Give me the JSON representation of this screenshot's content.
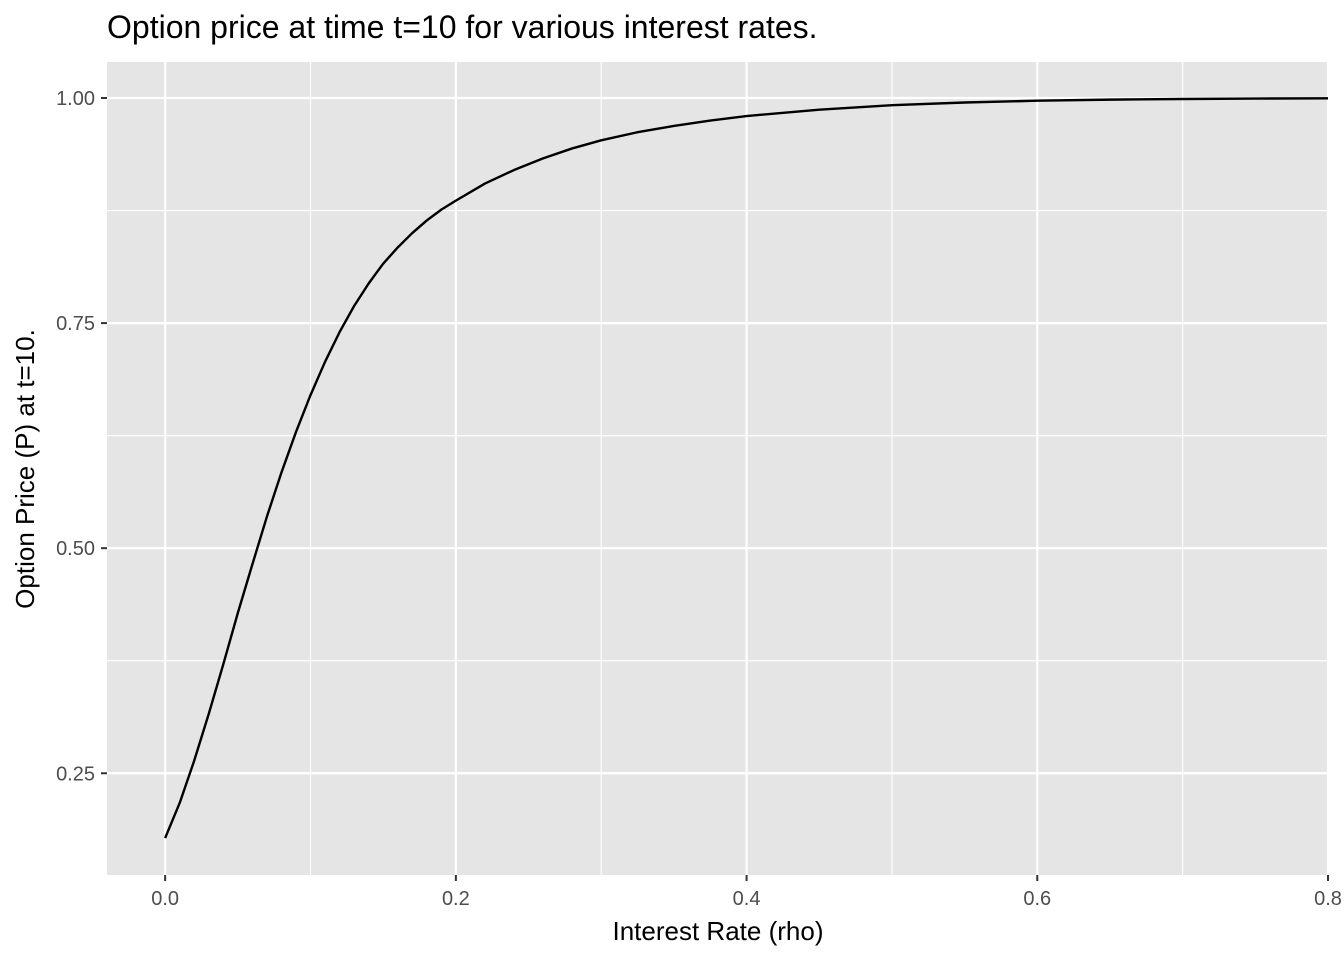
{
  "chart_data": {
    "type": "line",
    "title": "Option price at time t=10 for various interest rates.",
    "xlabel": "Interest Rate (rho)",
    "ylabel": "Option Price (P) at t=10.",
    "xlim": [
      -0.04,
      0.8
    ],
    "ylim": [
      0.137,
      1.04
    ],
    "x_ticks": [
      0.0,
      0.2,
      0.4,
      0.6,
      0.8
    ],
    "x_tick_labels": [
      "0.0",
      "0.2",
      "0.4",
      "0.6",
      "0.8"
    ],
    "y_ticks": [
      0.25,
      0.5,
      0.75,
      1.0
    ],
    "y_tick_labels": [
      "0.25",
      "0.50",
      "0.75",
      "1.00"
    ],
    "x_minor_ticks": [
      0.1,
      0.3,
      0.5,
      0.7
    ],
    "y_minor_ticks": [
      0.375,
      0.625,
      0.875
    ],
    "grid": true,
    "legend": "none",
    "colors": {
      "panel_background": "#e5e5e5",
      "grid": "#ffffff",
      "line": "#000000",
      "tick_label": "#4d4d4d",
      "tick_mark": "#333333"
    },
    "series": [
      {
        "x": [
          0.0,
          0.01,
          0.02,
          0.03,
          0.04,
          0.05,
          0.06,
          0.07,
          0.08,
          0.09,
          0.1,
          0.11,
          0.12,
          0.13,
          0.14,
          0.15,
          0.16,
          0.17,
          0.18,
          0.19,
          0.2,
          0.22,
          0.24,
          0.26,
          0.28,
          0.3,
          0.325,
          0.35,
          0.375,
          0.4,
          0.45,
          0.5,
          0.55,
          0.6,
          0.65,
          0.7,
          0.75,
          0.8
        ],
        "y": [
          0.178,
          0.217,
          0.264,
          0.316,
          0.371,
          0.428,
          0.482,
          0.535,
          0.584,
          0.629,
          0.67,
          0.707,
          0.74,
          0.769,
          0.794,
          0.816,
          0.834,
          0.85,
          0.864,
          0.876,
          0.886,
          0.905,
          0.92,
          0.933,
          0.944,
          0.953,
          0.962,
          0.969,
          0.975,
          0.98,
          0.987,
          0.992,
          0.995,
          0.997,
          0.9982,
          0.9989,
          0.9994,
          0.9997
        ]
      }
    ]
  }
}
